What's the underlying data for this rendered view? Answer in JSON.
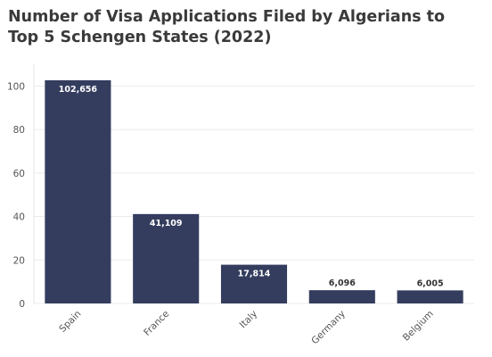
{
  "chart_data": {
    "type": "bar",
    "title": "Number of Visa Applications Filed by Algerians to Top 5 Schengen States (2022)",
    "categories": [
      "Spain",
      "France",
      "Italy",
      "Germany",
      "Belgium"
    ],
    "values": [
      102.656,
      41.109,
      17.814,
      6.096,
      6.005
    ],
    "data_labels": [
      "102,656",
      "41,109",
      "17,814",
      "6,096",
      "6,005"
    ],
    "xlabel": "",
    "ylabel": "",
    "ylim": [
      0,
      110
    ],
    "yticks": [
      0,
      20,
      40,
      60,
      80,
      100
    ],
    "grid": true,
    "legend": "none",
    "bar_color": "#343d5e",
    "label_inside_color": "#ffffff",
    "label_outside_color": "#333333"
  }
}
